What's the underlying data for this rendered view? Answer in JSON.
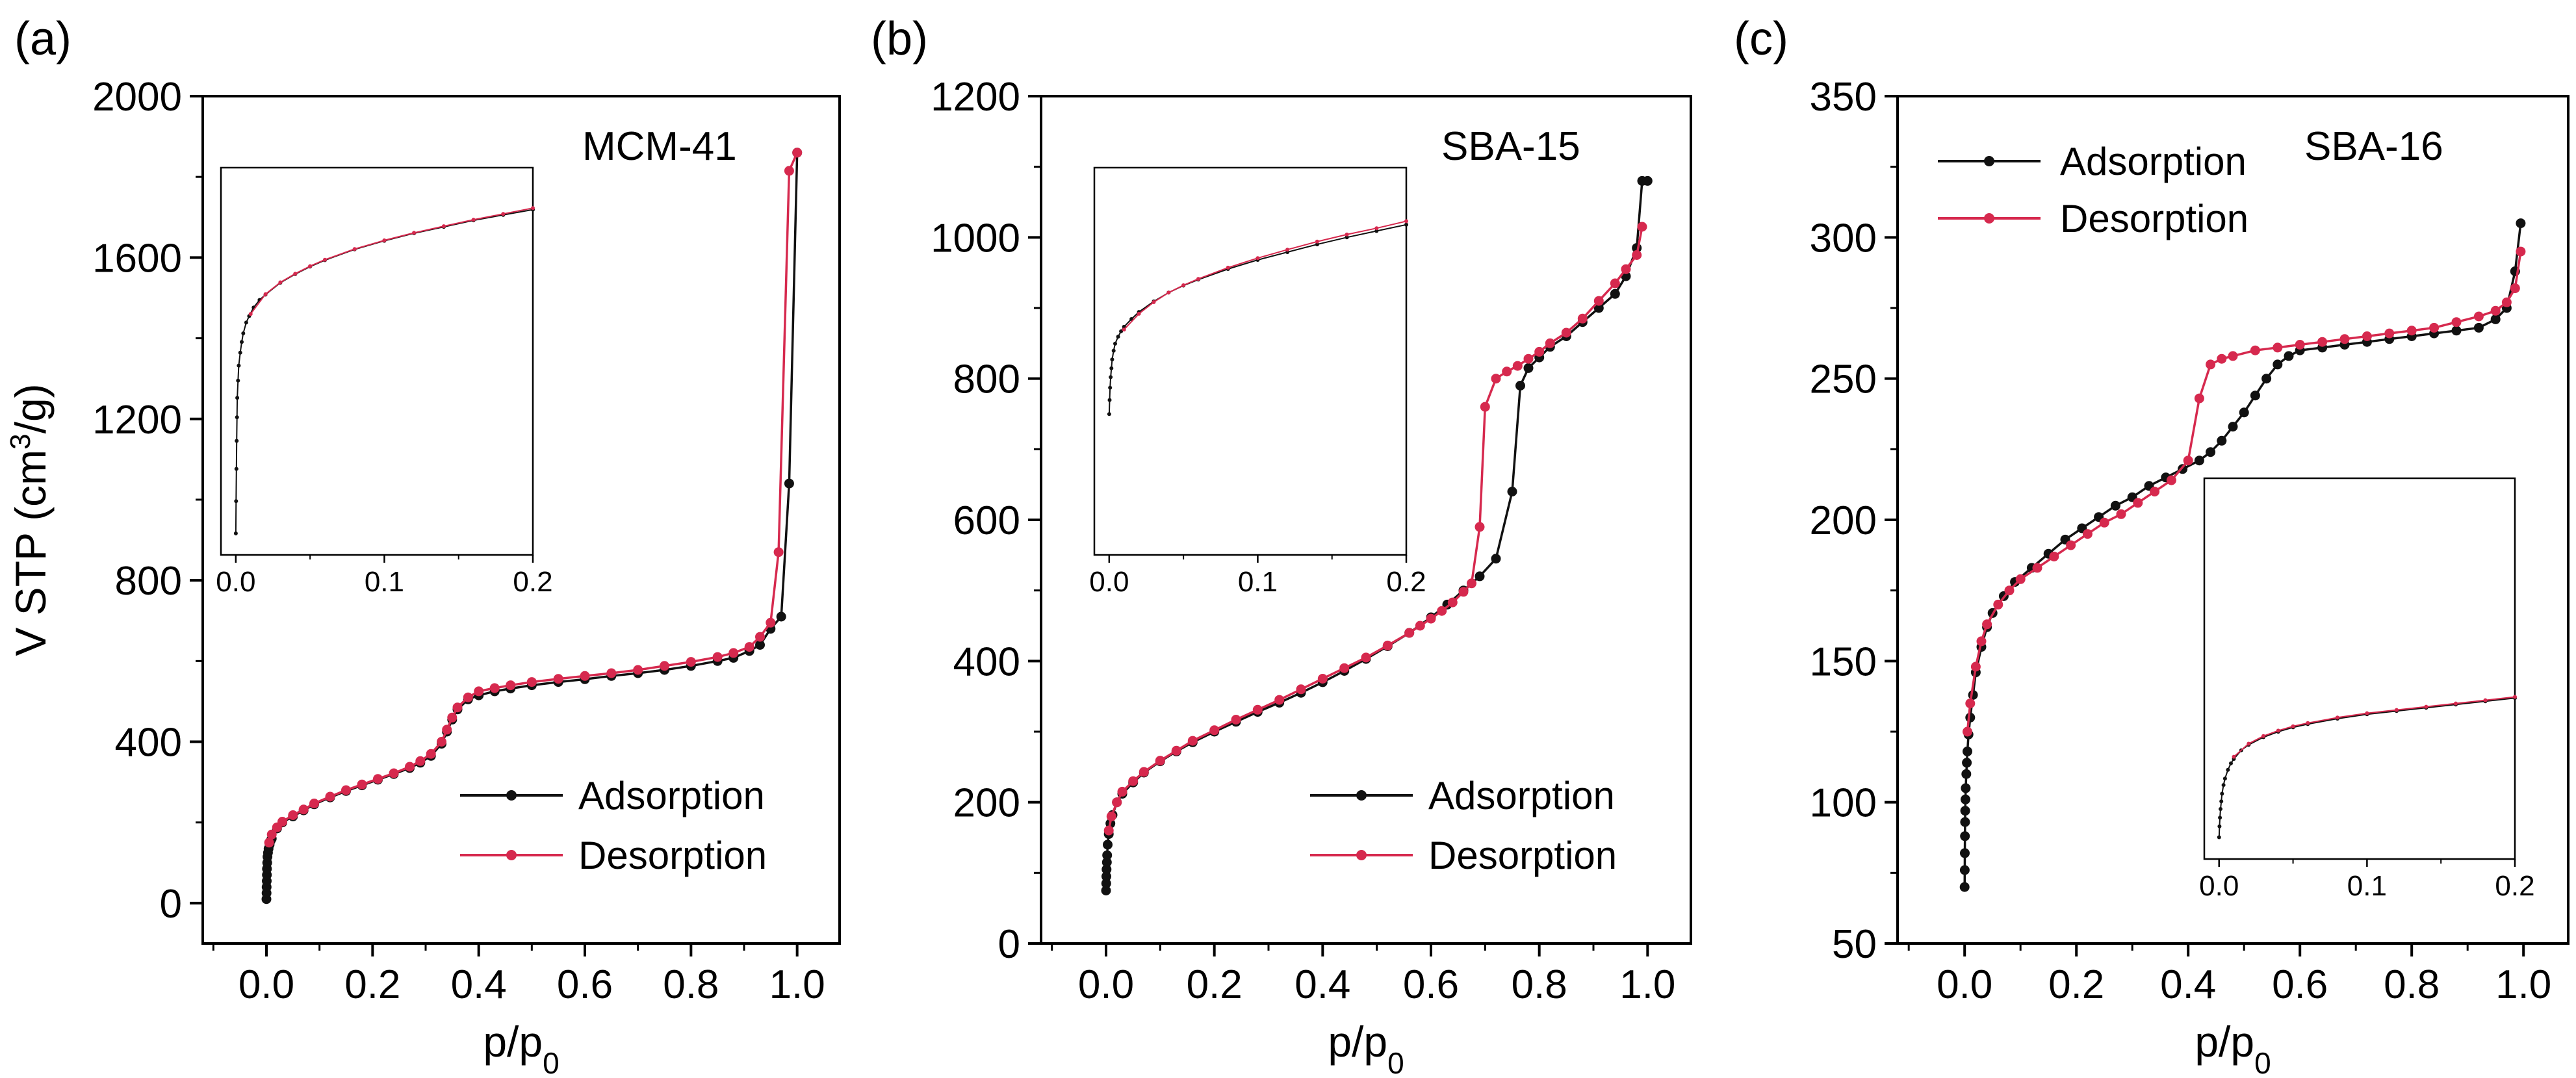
{
  "figure": {
    "y_axis_title": "V STP (cm³/g)",
    "x_axis_title": "p/p₀",
    "colors": {
      "adsorption": "#111111",
      "desorption": "#d6294e",
      "axis": "#000000"
    }
  },
  "chart_data": [
    {
      "type": "line",
      "panel_label": "(a)",
      "title": "MCM-41",
      "xlabel": "p/p₀",
      "ylabel": "V STP (cm³/g)",
      "xlim": [
        -0.12,
        1.08
      ],
      "ylim": [
        -100,
        2000
      ],
      "xticks": [
        0.0,
        0.2,
        0.4,
        0.6,
        0.8,
        1.0
      ],
      "xtick_labels": [
        "0.0",
        "0.2",
        "0.4",
        "0.6",
        "0.8",
        "1.0"
      ],
      "yticks": [
        0,
        400,
        800,
        1200,
        1600,
        2000
      ],
      "ytick_labels": [
        "0",
        "400",
        "800",
        "1200",
        "1600",
        "2000"
      ],
      "legend_position": "lower-right",
      "series": [
        {
          "name": "Adsorption",
          "x": [
            0.0,
            0.0002,
            0.0004,
            0.0006,
            0.0008,
            0.001,
            0.0015,
            0.002,
            0.003,
            0.004,
            0.006,
            0.008,
            0.01,
            0.02,
            0.03,
            0.05,
            0.07,
            0.09,
            0.12,
            0.15,
            0.18,
            0.21,
            0.24,
            0.27,
            0.29,
            0.31,
            0.33,
            0.34,
            0.35,
            0.36,
            0.38,
            0.4,
            0.43,
            0.46,
            0.5,
            0.55,
            0.6,
            0.65,
            0.7,
            0.75,
            0.8,
            0.85,
            0.88,
            0.91,
            0.93,
            0.95,
            0.97,
            0.985,
            1.0
          ],
          "y": [
            10,
            25,
            40,
            55,
            70,
            85,
            100,
            115,
            125,
            135,
            145,
            155,
            160,
            185,
            200,
            215,
            230,
            245,
            262,
            278,
            292,
            306,
            320,
            335,
            348,
            365,
            395,
            425,
            455,
            480,
            505,
            515,
            525,
            532,
            540,
            548,
            555,
            563,
            570,
            578,
            588,
            600,
            608,
            625,
            640,
            680,
            710,
            1040,
            1860
          ]
        },
        {
          "name": "Desorption",
          "x": [
            1.0,
            0.985,
            0.965,
            0.95,
            0.93,
            0.91,
            0.88,
            0.85,
            0.8,
            0.75,
            0.7,
            0.65,
            0.6,
            0.55,
            0.5,
            0.46,
            0.43,
            0.4,
            0.38,
            0.36,
            0.35,
            0.34,
            0.33,
            0.31,
            0.29,
            0.27,
            0.24,
            0.21,
            0.18,
            0.15,
            0.12,
            0.09,
            0.07,
            0.05,
            0.03,
            0.02,
            0.01,
            0.005
          ],
          "y": [
            1860,
            1815,
            870,
            695,
            660,
            635,
            620,
            610,
            598,
            588,
            578,
            570,
            563,
            556,
            548,
            540,
            533,
            525,
            510,
            485,
            460,
            430,
            400,
            370,
            352,
            338,
            322,
            308,
            294,
            280,
            264,
            247,
            232,
            218,
            202,
            188,
            170,
            150
          ]
        }
      ],
      "inset": {
        "position": "upper-left",
        "xlim": [
          -0.01,
          0.2
        ],
        "ylim": [
          0,
          1800
        ],
        "xticks": [
          0.0,
          0.1,
          0.2
        ],
        "xtick_labels": [
          "0.0",
          "0.1",
          "0.2"
        ],
        "series": [
          {
            "name": "Adsorption",
            "x": [
              0.0,
              0.0002,
              0.0004,
              0.0006,
              0.0008,
              0.001,
              0.0015,
              0.002,
              0.003,
              0.004,
              0.005,
              0.007,
              0.009,
              0.012,
              0.016,
              0.02,
              0.03,
              0.04,
              0.05,
              0.06,
              0.08,
              0.1,
              0.12,
              0.14,
              0.16,
              0.18,
              0.2
            ],
            "y": [
              100,
              250,
              400,
              530,
              640,
              730,
              810,
              880,
              940,
              990,
              1030,
              1080,
              1110,
              1150,
              1185,
              1210,
              1265,
              1305,
              1340,
              1370,
              1420,
              1460,
              1495,
              1525,
              1555,
              1580,
              1605
            ]
          },
          {
            "name": "Desorption",
            "x": [
              0.2,
              0.18,
              0.16,
              0.14,
              0.12,
              0.1,
              0.08,
              0.06,
              0.05,
              0.04,
              0.03,
              0.02,
              0.01
            ],
            "y": [
              1612,
              1585,
              1558,
              1528,
              1497,
              1462,
              1422,
              1372,
              1342,
              1307,
              1267,
              1212,
              1120
            ]
          }
        ]
      }
    },
    {
      "type": "line",
      "panel_label": "(b)",
      "title": "SBA-15",
      "xlabel": "p/p₀",
      "ylabel": "",
      "xlim": [
        -0.12,
        1.08
      ],
      "ylim": [
        0,
        1200
      ],
      "xticks": [
        0.0,
        0.2,
        0.4,
        0.6,
        0.8,
        1.0
      ],
      "xtick_labels": [
        "0.0",
        "0.2",
        "0.4",
        "0.6",
        "0.8",
        "1.0"
      ],
      "yticks": [
        0,
        200,
        400,
        600,
        800,
        1000,
        1200
      ],
      "ytick_labels": [
        "0",
        "200",
        "400",
        "600",
        "800",
        "1000",
        "1200"
      ],
      "legend_position": "lower-right",
      "series": [
        {
          "name": "Adsorption",
          "x": [
            0.0,
            0.0003,
            0.0006,
            0.001,
            0.0015,
            0.002,
            0.003,
            0.005,
            0.008,
            0.012,
            0.02,
            0.03,
            0.05,
            0.07,
            0.1,
            0.13,
            0.16,
            0.2,
            0.24,
            0.28,
            0.32,
            0.36,
            0.4,
            0.44,
            0.48,
            0.52,
            0.56,
            0.6,
            0.63,
            0.66,
            0.69,
            0.72,
            0.75,
            0.765,
            0.78,
            0.8,
            0.82,
            0.85,
            0.88,
            0.91,
            0.94,
            0.96,
            0.98,
            0.99,
            1.0
          ],
          "y": [
            75,
            85,
            95,
            105,
            115,
            125,
            140,
            155,
            170,
            182,
            200,
            212,
            228,
            242,
            258,
            272,
            285,
            300,
            314,
            328,
            341,
            355,
            370,
            386,
            403,
            421,
            440,
            462,
            480,
            500,
            520,
            545,
            640,
            790,
            815,
            830,
            845,
            860,
            880,
            900,
            920,
            945,
            985,
            1080,
            1080
          ]
        },
        {
          "name": "Desorption",
          "x": [
            0.99,
            0.98,
            0.96,
            0.94,
            0.91,
            0.88,
            0.85,
            0.82,
            0.8,
            0.78,
            0.76,
            0.74,
            0.72,
            0.7,
            0.69,
            0.675,
            0.66,
            0.64,
            0.62,
            0.6,
            0.58,
            0.56,
            0.52,
            0.48,
            0.44,
            0.4,
            0.36,
            0.32,
            0.28,
            0.24,
            0.2,
            0.16,
            0.13,
            0.1,
            0.07,
            0.05,
            0.03,
            0.02,
            0.01,
            0.005
          ],
          "y": [
            1015,
            975,
            955,
            935,
            910,
            885,
            865,
            850,
            838,
            828,
            818,
            810,
            800,
            760,
            590,
            510,
            498,
            483,
            471,
            460,
            450,
            440,
            422,
            405,
            390,
            375,
            360,
            345,
            331,
            317,
            302,
            287,
            273,
            259,
            243,
            230,
            215,
            200,
            180,
            160
          ]
        }
      ],
      "inset": {
        "position": "upper-left",
        "xlim": [
          -0.01,
          0.2
        ],
        "ylim": [
          0,
          1100
        ],
        "xticks": [
          0.0,
          0.1,
          0.2
        ],
        "xtick_labels": [
          "0.0",
          "0.1",
          "0.2"
        ],
        "series": [
          {
            "name": "Adsorption",
            "x": [
              0.0,
              0.0003,
              0.0006,
              0.001,
              0.0015,
              0.002,
              0.003,
              0.004,
              0.006,
              0.008,
              0.01,
              0.015,
              0.02,
              0.03,
              0.04,
              0.05,
              0.06,
              0.08,
              0.1,
              0.12,
              0.14,
              0.16,
              0.18,
              0.2
            ],
            "y": [
              400,
              440,
              475,
              505,
              530,
              555,
              580,
              600,
              620,
              635,
              648,
              670,
              690,
              720,
              745,
              765,
              782,
              812,
              838,
              860,
              882,
              902,
              920,
              938
            ]
          },
          {
            "name": "Desorption",
            "x": [
              0.2,
              0.18,
              0.16,
              0.14,
              0.12,
              0.1,
              0.08,
              0.06,
              0.05,
              0.04,
              0.03,
              0.02,
              0.01
            ],
            "y": [
              948,
              928,
              910,
              890,
              867,
              843,
              816,
              784,
              766,
              745,
              718,
              685,
              640
            ]
          }
        ]
      }
    },
    {
      "type": "line",
      "panel_label": "(c)",
      "title": "SBA-16",
      "xlabel": "p/p₀",
      "ylabel": "",
      "xlim": [
        -0.12,
        1.08
      ],
      "ylim": [
        50,
        350
      ],
      "xticks": [
        0.0,
        0.2,
        0.4,
        0.6,
        0.8,
        1.0
      ],
      "xtick_labels": [
        "0.0",
        "0.2",
        "0.4",
        "0.6",
        "0.8",
        "1.0"
      ],
      "yticks": [
        50,
        100,
        150,
        200,
        250,
        300,
        350
      ],
      "ytick_labels": [
        "50",
        "100",
        "150",
        "200",
        "250",
        "300",
        "350"
      ],
      "legend_position": "top-left",
      "series": [
        {
          "name": "Adsorption",
          "x": [
            0.0,
            0.0002,
            0.0004,
            0.0006,
            0.0008,
            0.001,
            0.0015,
            0.002,
            0.003,
            0.004,
            0.005,
            0.007,
            0.01,
            0.015,
            0.02,
            0.03,
            0.04,
            0.05,
            0.07,
            0.09,
            0.12,
            0.15,
            0.18,
            0.21,
            0.24,
            0.27,
            0.3,
            0.33,
            0.36,
            0.39,
            0.42,
            0.44,
            0.46,
            0.48,
            0.5,
            0.52,
            0.54,
            0.56,
            0.58,
            0.6,
            0.64,
            0.68,
            0.72,
            0.76,
            0.8,
            0.84,
            0.88,
            0.92,
            0.95,
            0.97,
            0.985,
            0.995
          ],
          "y": [
            70,
            76,
            82,
            88,
            93,
            97,
            101,
            105,
            110,
            114,
            118,
            124,
            130,
            138,
            146,
            155,
            162,
            167,
            173,
            178,
            183,
            188,
            193,
            197,
            201,
            205,
            208,
            212,
            215,
            218,
            221,
            224,
            228,
            233,
            238,
            244,
            250,
            255,
            258,
            260,
            261,
            262,
            263,
            264,
            265,
            266,
            267,
            268,
            271,
            275,
            288,
            305
          ]
        },
        {
          "name": "Desorption",
          "x": [
            0.995,
            0.985,
            0.97,
            0.95,
            0.92,
            0.88,
            0.84,
            0.8,
            0.76,
            0.72,
            0.68,
            0.64,
            0.6,
            0.56,
            0.52,
            0.48,
            0.46,
            0.44,
            0.42,
            0.4,
            0.37,
            0.34,
            0.31,
            0.28,
            0.25,
            0.22,
            0.19,
            0.16,
            0.13,
            0.1,
            0.08,
            0.06,
            0.04,
            0.03,
            0.02,
            0.01,
            0.005
          ],
          "y": [
            295,
            282,
            277,
            274,
            272,
            270,
            268,
            267,
            266,
            265,
            264,
            263,
            262,
            261,
            260,
            258,
            257,
            255,
            243,
            221,
            214,
            210,
            206,
            202,
            199,
            195,
            191,
            187,
            183,
            179,
            175,
            170,
            163,
            157,
            148,
            135,
            125
          ]
        }
      ],
      "inset": {
        "position": "lower-right",
        "xlim": [
          -0.01,
          0.2
        ],
        "ylim": [
          50,
          400
        ],
        "xticks": [
          0.0,
          0.1,
          0.2
        ],
        "xtick_labels": [
          "0.0",
          "0.1",
          "0.2"
        ],
        "series": [
          {
            "name": "Adsorption",
            "x": [
              0.0,
              0.0003,
              0.0006,
              0.001,
              0.0015,
              0.002,
              0.003,
              0.004,
              0.006,
              0.008,
              0.01,
              0.015,
              0.02,
              0.03,
              0.04,
              0.05,
              0.06,
              0.08,
              0.1,
              0.12,
              0.14,
              0.16,
              0.18,
              0.2
            ],
            "y": [
              70,
              80,
              88,
              96,
              103,
              110,
              118,
              124,
              132,
              138,
              142,
              150,
              155,
              162,
              167,
              171,
              174,
              179,
              183,
              186,
              189,
              192,
              195,
              198
            ]
          },
          {
            "name": "Desorption",
            "x": [
              0.2,
              0.18,
              0.16,
              0.14,
              0.12,
              0.1,
              0.08,
              0.06,
              0.05,
              0.04,
              0.03,
              0.02,
              0.01
            ],
            "y": [
              199,
              196,
              193,
              190,
              187,
              184,
              180,
              175,
              172,
              168,
              163,
              156,
              144
            ]
          }
        ]
      }
    }
  ]
}
